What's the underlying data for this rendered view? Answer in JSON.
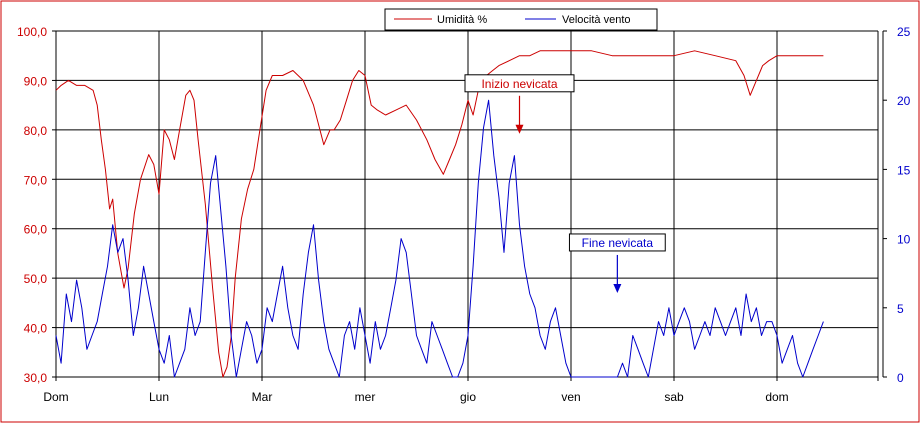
{
  "chart_data": {
    "type": "line",
    "x_unit": "day",
    "x_range": [
      0,
      8.2
    ],
    "categories": [
      "Dom",
      "Lun",
      "Mar",
      "mer",
      "gio",
      "ven",
      "sab",
      "dom"
    ],
    "left_axis": {
      "ylim": [
        30,
        100
      ],
      "ticks": [
        "30,0",
        "40,0",
        "50,0",
        "60,0",
        "70,0",
        "80,0",
        "90,0",
        "100,0"
      ],
      "color": "#cc0000"
    },
    "right_axis": {
      "ylim": [
        0,
        25
      ],
      "ticks": [
        "0",
        "5",
        "10",
        "15",
        "20",
        "25"
      ],
      "color": "#0000cc"
    },
    "grid": true,
    "legend_position": "top-center",
    "series": [
      {
        "name": "Umidità %",
        "axis": "left",
        "color": "#cc0000",
        "x": [
          0,
          0.05,
          0.12,
          0.2,
          0.28,
          0.36,
          0.4,
          0.44,
          0.48,
          0.52,
          0.55,
          0.6,
          0.66,
          0.7,
          0.76,
          0.82,
          0.9,
          0.95,
          1.0,
          1.05,
          1.1,
          1.15,
          1.2,
          1.26,
          1.3,
          1.34,
          1.38,
          1.45,
          1.52,
          1.58,
          1.62,
          1.66,
          1.7,
          1.74,
          1.8,
          1.86,
          1.92,
          1.98,
          2.04,
          2.1,
          2.2,
          2.3,
          2.4,
          2.5,
          2.6,
          2.66,
          2.7,
          2.76,
          2.82,
          2.88,
          2.94,
          3.0,
          3.06,
          3.12,
          3.2,
          3.3,
          3.4,
          3.5,
          3.6,
          3.68,
          3.76,
          3.82,
          3.88,
          3.94,
          4.0,
          4.05,
          4.1,
          4.14,
          4.18,
          4.24,
          4.3,
          4.4,
          4.5,
          4.6,
          4.7,
          4.8,
          5.0,
          5.2,
          5.4,
          5.6,
          5.8,
          6.0,
          6.2,
          6.4,
          6.6,
          6.68,
          6.74,
          6.8,
          6.86,
          6.92,
          7.0,
          7.1,
          7.2,
          7.3,
          7.45
        ],
        "values": [
          88,
          89,
          90,
          89,
          89,
          88,
          85,
          78,
          72,
          64,
          66,
          55,
          48,
          52,
          63,
          70,
          75,
          73,
          67,
          80,
          78,
          74,
          80,
          87,
          88,
          86,
          78,
          65,
          48,
          35,
          30,
          32,
          38,
          50,
          62,
          68,
          72,
          80,
          88,
          91,
          91,
          92,
          90,
          85,
          77,
          80,
          80,
          82,
          86,
          90,
          92,
          91,
          85,
          84,
          83,
          84,
          85,
          82,
          78,
          74,
          71,
          74,
          77,
          81,
          86,
          83,
          88,
          90,
          91,
          92,
          93,
          94,
          95,
          95,
          96,
          96,
          96,
          96,
          95,
          95,
          95,
          95,
          96,
          95,
          94,
          91,
          87,
          90,
          93,
          94,
          95,
          95,
          95,
          95,
          95
        ]
      },
      {
        "name": "Velocità vento",
        "axis": "right",
        "color": "#0000cc",
        "x": [
          0,
          0.05,
          0.1,
          0.15,
          0.2,
          0.25,
          0.3,
          0.35,
          0.4,
          0.45,
          0.5,
          0.55,
          0.6,
          0.65,
          0.7,
          0.75,
          0.8,
          0.85,
          0.9,
          0.95,
          1.0,
          1.05,
          1.1,
          1.15,
          1.2,
          1.25,
          1.3,
          1.35,
          1.4,
          1.45,
          1.5,
          1.55,
          1.6,
          1.65,
          1.7,
          1.75,
          1.8,
          1.85,
          1.9,
          1.95,
          2.0,
          2.05,
          2.1,
          2.15,
          2.2,
          2.25,
          2.3,
          2.35,
          2.4,
          2.45,
          2.5,
          2.55,
          2.6,
          2.65,
          2.7,
          2.75,
          2.8,
          2.85,
          2.9,
          2.95,
          3.0,
          3.05,
          3.1,
          3.15,
          3.2,
          3.25,
          3.3,
          3.35,
          3.4,
          3.45,
          3.5,
          3.55,
          3.6,
          3.65,
          3.7,
          3.75,
          3.8,
          3.85,
          3.9,
          3.95,
          4.0,
          4.05,
          4.1,
          4.15,
          4.2,
          4.25,
          4.3,
          4.35,
          4.4,
          4.45,
          4.5,
          4.55,
          4.6,
          4.65,
          4.7,
          4.75,
          4.8,
          4.85,
          4.9,
          4.95,
          5.0,
          5.05,
          5.1,
          5.15,
          5.2,
          5.25,
          5.3,
          5.35,
          5.4,
          5.45,
          5.5,
          5.55,
          5.6,
          5.65,
          5.7,
          5.75,
          5.8,
          5.85,
          5.9,
          5.95,
          6.0,
          6.05,
          6.1,
          6.15,
          6.2,
          6.25,
          6.3,
          6.35,
          6.4,
          6.45,
          6.5,
          6.55,
          6.6,
          6.65,
          6.7,
          6.75,
          6.8,
          6.85,
          6.9,
          6.95,
          7.0,
          7.05,
          7.1,
          7.15,
          7.2,
          7.25,
          7.3,
          7.35,
          7.4,
          7.45
        ],
        "values": [
          3,
          1,
          6,
          4,
          7,
          5,
          2,
          3,
          4,
          6,
          8,
          11,
          9,
          10,
          7,
          3,
          5,
          8,
          6,
          4,
          2,
          1,
          3,
          0,
          1,
          2,
          5,
          3,
          4,
          9,
          14,
          16,
          12,
          8,
          3,
          0,
          2,
          4,
          3,
          1,
          2,
          5,
          4,
          6,
          8,
          5,
          3,
          2,
          6,
          9,
          11,
          7,
          4,
          2,
          1,
          0,
          3,
          4,
          2,
          5,
          3,
          1,
          4,
          2,
          3,
          5,
          7,
          10,
          9,
          6,
          3,
          2,
          1,
          4,
          3,
          2,
          1,
          0,
          0,
          1,
          3,
          8,
          14,
          18,
          20,
          16,
          13,
          9,
          14,
          16,
          11,
          8,
          6,
          5,
          3,
          2,
          4,
          5,
          3,
          1,
          0,
          0,
          0,
          0,
          0,
          0,
          0,
          0,
          0,
          0,
          1,
          0,
          3,
          2,
          1,
          0,
          2,
          4,
          3,
          5,
          3,
          4,
          5,
          4,
          2,
          3,
          4,
          3,
          5,
          4,
          3,
          4,
          5,
          3,
          6,
          4,
          5,
          3,
          4,
          4,
          3,
          1,
          2,
          3,
          1,
          0,
          1,
          2,
          3,
          4
        ]
      }
    ],
    "annotations": [
      {
        "text": "Inizio nevicata",
        "color": "#cc0000",
        "x": 4.5,
        "y_right": 17.5
      },
      {
        "text": "Fine nevicata",
        "color": "#0000cc",
        "x": 5.45,
        "y_right": 6
      }
    ]
  }
}
